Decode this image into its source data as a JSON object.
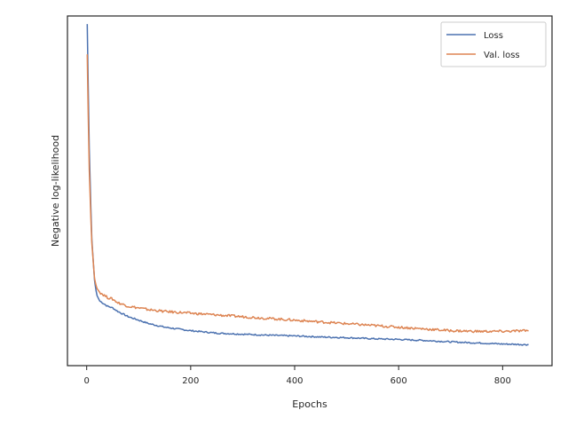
{
  "chart_data": {
    "type": "line",
    "title": "",
    "xlabel": "Epochs",
    "ylabel": "Negative log-likelihood",
    "xlim": [
      -37,
      895
    ],
    "ylim": [
      0,
      1
    ],
    "xticks": [
      0,
      200,
      400,
      600,
      800
    ],
    "xtick_labels": [
      "0",
      "200",
      "400",
      "600",
      "800"
    ],
    "yticks_shown": false,
    "grid": false,
    "legend_position": "top-right",
    "series": [
      {
        "name": "Loss",
        "color": "#4c72b0",
        "x": [
          1,
          3,
          5,
          8,
          10,
          13,
          15,
          18,
          20,
          25,
          30,
          40,
          50,
          60,
          80,
          100,
          120,
          150,
          200,
          250,
          300,
          350,
          400,
          450,
          500,
          550,
          600,
          650,
          700,
          750,
          800,
          850
        ],
        "y": [
          0.977,
          0.8,
          0.62,
          0.45,
          0.36,
          0.29,
          0.245,
          0.215,
          0.2,
          0.185,
          0.18,
          0.17,
          0.165,
          0.155,
          0.14,
          0.13,
          0.12,
          0.11,
          0.1,
          0.093,
          0.09,
          0.087,
          0.085,
          0.082,
          0.08,
          0.077,
          0.075,
          0.072,
          0.068,
          0.065,
          0.062,
          0.06
        ]
      },
      {
        "name": "Val. loss",
        "color": "#dd8452",
        "x": [
          1,
          3,
          5,
          8,
          10,
          13,
          15,
          18,
          20,
          25,
          30,
          40,
          50,
          60,
          80,
          100,
          120,
          150,
          200,
          250,
          300,
          350,
          400,
          450,
          500,
          550,
          600,
          650,
          700,
          750,
          800,
          850
        ],
        "y": [
          0.89,
          0.72,
          0.56,
          0.42,
          0.35,
          0.29,
          0.25,
          0.23,
          0.22,
          0.21,
          0.205,
          0.195,
          0.19,
          0.18,
          0.17,
          0.165,
          0.16,
          0.155,
          0.15,
          0.145,
          0.14,
          0.135,
          0.13,
          0.125,
          0.12,
          0.115,
          0.11,
          0.105,
          0.1,
          0.098,
          0.098,
          0.1
        ]
      }
    ]
  }
}
